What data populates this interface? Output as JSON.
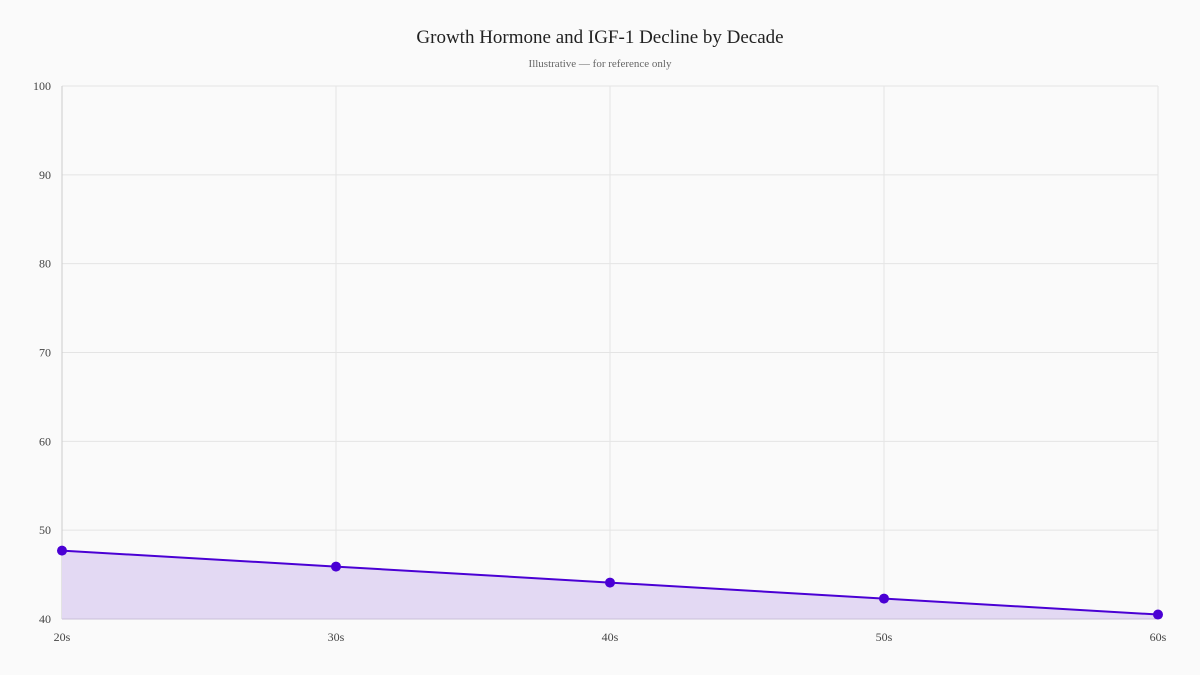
{
  "chart_data": {
    "type": "area",
    "title": "Growth Hormone and IGF-1 Decline by Decade",
    "subtitle": "Illustrative — for reference only",
    "categories": [
      "20s",
      "30s",
      "40s",
      "50s",
      "60s"
    ],
    "series": [
      {
        "values": [
          47.7,
          45.9,
          44.1,
          42.3,
          40.5
        ]
      }
    ],
    "ylim": [
      40,
      100
    ],
    "yticks": [
      40,
      50,
      60,
      70,
      80,
      90,
      100
    ],
    "grid": true,
    "colors": {
      "line": "#4a00d4",
      "fill": "#e3d9f3",
      "grid": "#e4e4e4"
    }
  }
}
